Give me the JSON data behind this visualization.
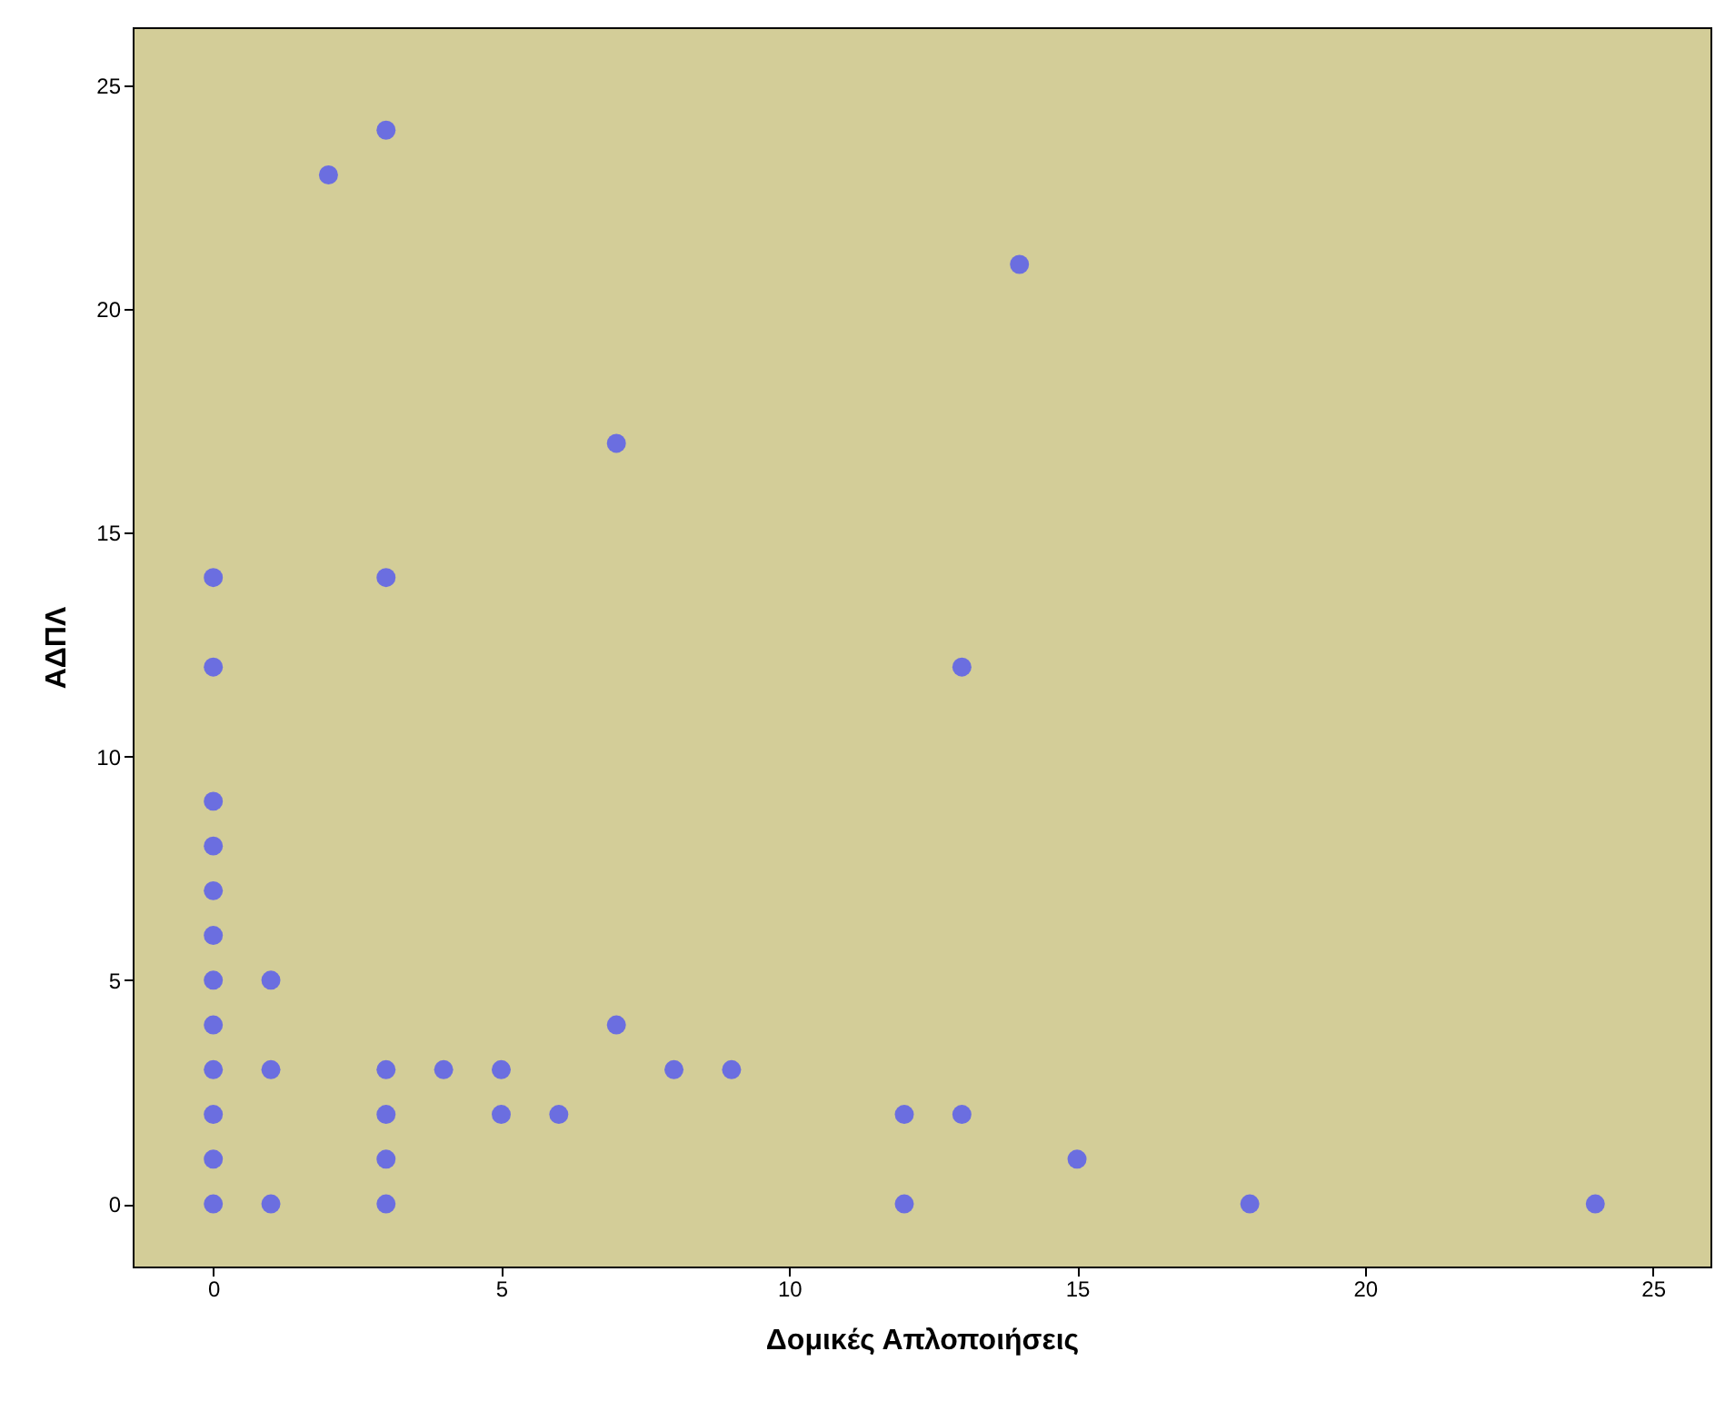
{
  "chart_data": {
    "type": "scatter",
    "xlabel": "Δομικές Απλοποιήσεις",
    "ylabel": "ΑΔΠΛ",
    "x": [
      0,
      0,
      0,
      0,
      0,
      0,
      0,
      0,
      0,
      0,
      0,
      0,
      1,
      1,
      1,
      2,
      3,
      3,
      3,
      3,
      3,
      3,
      4,
      5,
      5,
      6,
      7,
      7,
      8,
      9,
      12,
      12,
      13,
      13,
      14,
      15,
      18,
      24
    ],
    "series": [
      {
        "color": "#6b6ee0",
        "values": [
          0,
          1,
          2,
          3,
          4,
          5,
          6,
          7,
          8,
          9,
          12,
          14,
          0,
          3,
          5,
          23,
          24,
          14,
          3,
          2,
          1,
          0,
          3,
          3,
          2,
          2,
          17,
          4,
          3,
          3,
          2,
          0,
          12,
          2,
          21,
          1,
          0,
          0
        ]
      }
    ],
    "xlim": [
      -1.4,
      26
    ],
    "xticks": [
      0,
      5,
      10,
      15,
      20,
      25
    ],
    "ylim": [
      -1.4,
      26.3
    ],
    "yticks": [
      0,
      5,
      10,
      15,
      20,
      25
    ],
    "grid": false,
    "marker": "circle"
  }
}
